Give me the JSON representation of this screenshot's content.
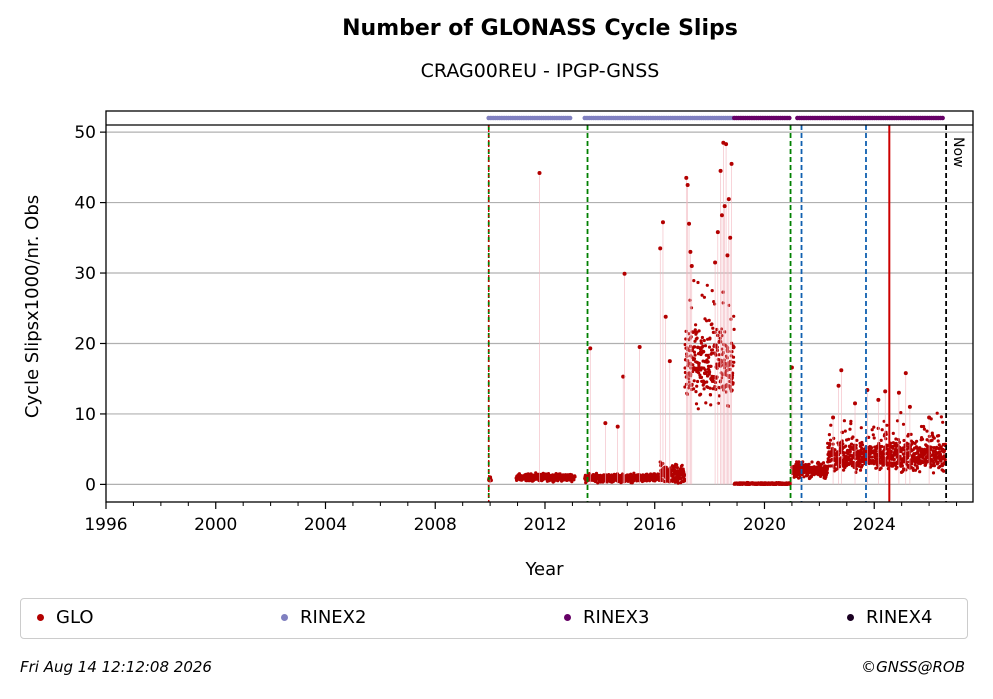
{
  "header": {
    "title": "Number of GLONASS Cycle Slips",
    "subtitle": "CRAG00REU - IPGP-GNSS"
  },
  "footer": {
    "timestamp": "Fri Aug 14 12:12:08 2026",
    "credit": "©GNSS@ROB"
  },
  "colors": {
    "glo": "#b30000",
    "rinex2": "#8080c0",
    "rinex3": "#660066",
    "rinex4": "#1a0022",
    "green_line": "#008000",
    "blue_line": "#1060b0",
    "red_line": "#cc0000",
    "grid": "#b0b0b0"
  },
  "legend": [
    {
      "label": "GLO",
      "color": "#b30000"
    },
    {
      "label": "RINEX2",
      "color": "#8080c0"
    },
    {
      "label": "RINEX3",
      "color": "#660066"
    },
    {
      "label": "RINEX4",
      "color": "#1a0022"
    }
  ],
  "chart_data": {
    "type": "scatter",
    "title": "Number of GLONASS Cycle Slips",
    "subtitle": "CRAG00REU - IPGP-GNSS",
    "xlabel": "Year",
    "ylabel": "Cycle Slipsx1000/nr. Obs",
    "xlim": [
      1996,
      2027.6
    ],
    "ylim": [
      -2.5,
      53
    ],
    "xticks": [
      1996,
      2000,
      2004,
      2008,
      2012,
      2016,
      2020,
      2024
    ],
    "yticks": [
      0,
      10,
      20,
      30,
      40,
      50
    ],
    "grid": "horizontal",
    "legend_position": "bottom",
    "now_label": "Now",
    "now_x": 2026.62,
    "green_dashed_lines": [
      2009.95,
      2013.55,
      2020.95
    ],
    "blue_dashed_lines": [
      2021.35,
      2023.7
    ],
    "red_solid_lines": [
      2024.55
    ],
    "green_dotted_lines": [
      2009.95
    ],
    "rinex_bars": [
      {
        "format": "RINEX2",
        "start": 2009.95,
        "end": 2012.95
      },
      {
        "format": "RINEX2",
        "start": 2013.45,
        "end": 2018.9
      },
      {
        "format": "RINEX3",
        "start": 2018.9,
        "end": 2020.95
      },
      {
        "format": "RINEX3",
        "start": 2021.2,
        "end": 2026.55
      }
    ],
    "series": [
      {
        "name": "GLO",
        "segments": [
          {
            "start": 2009.95,
            "end": 2010.05,
            "level": 0.6,
            "spread": 0.4
          },
          {
            "start": 2010.95,
            "end": 2013.1,
            "level": 1.0,
            "spread": 0.7
          },
          {
            "start": 2013.45,
            "end": 2016.2,
            "level": 0.9,
            "spread": 0.8
          },
          {
            "start": 2016.2,
            "end": 2017.1,
            "level": 1.5,
            "spread": 2.0
          },
          {
            "start": 2017.1,
            "end": 2018.9,
            "level": 17.0,
            "spread": 7.0
          },
          {
            "start": 2018.9,
            "end": 2020.95,
            "level": 0.1,
            "spread": 0.2
          },
          {
            "start": 2021.0,
            "end": 2022.3,
            "level": 2.0,
            "spread": 1.5
          },
          {
            "start": 2022.3,
            "end": 2026.6,
            "level": 4.0,
            "spread": 3.0
          }
        ],
        "outliers": [
          [
            2010.0,
            1.0
          ],
          [
            2011.8,
            44.2
          ],
          [
            2013.65,
            19.3
          ],
          [
            2014.2,
            8.7
          ],
          [
            2014.65,
            8.2
          ],
          [
            2014.85,
            15.3
          ],
          [
            2014.9,
            29.9
          ],
          [
            2015.45,
            19.5
          ],
          [
            2016.3,
            37.2
          ],
          [
            2016.2,
            33.5
          ],
          [
            2016.4,
            23.8
          ],
          [
            2016.55,
            17.5
          ],
          [
            2017.15,
            43.5
          ],
          [
            2017.2,
            42.5
          ],
          [
            2017.25,
            37.0
          ],
          [
            2017.3,
            33.0
          ],
          [
            2017.35,
            31.0
          ],
          [
            2018.5,
            48.5
          ],
          [
            2018.6,
            48.3
          ],
          [
            2018.4,
            44.5
          ],
          [
            2018.8,
            45.5
          ],
          [
            2018.7,
            40.5
          ],
          [
            2018.55,
            39.5
          ],
          [
            2018.45,
            38.2
          ],
          [
            2018.3,
            35.8
          ],
          [
            2018.75,
            35.0
          ],
          [
            2018.65,
            32.5
          ],
          [
            2018.2,
            31.5
          ],
          [
            2021.0,
            16.6
          ],
          [
            2022.8,
            16.2
          ],
          [
            2022.7,
            14.0
          ],
          [
            2023.75,
            13.4
          ],
          [
            2024.4,
            13.2
          ],
          [
            2024.9,
            13.0
          ],
          [
            2025.15,
            15.8
          ],
          [
            2025.3,
            11.0
          ],
          [
            2024.15,
            12.0
          ],
          [
            2023.3,
            11.5
          ],
          [
            2022.5,
            9.5
          ],
          [
            2026.0,
            9.5
          ]
        ]
      }
    ]
  }
}
